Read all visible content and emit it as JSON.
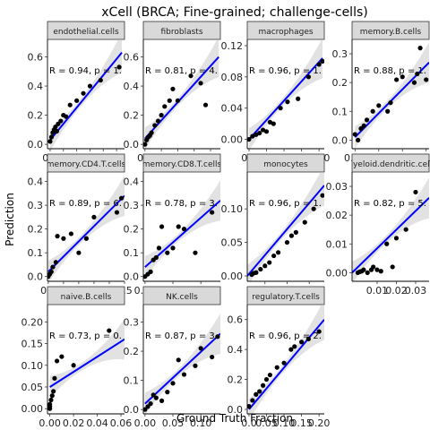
{
  "chart_data": {
    "type": "scatter",
    "title": "xCell (BRCA; Fine-grained; challenge-cells)",
    "xlabel": "Ground Truth Fraction",
    "ylabel": "Prediction",
    "colors": {
      "points": "#000000",
      "fit_line": "#0000ff",
      "band": "#bebebe",
      "strip_fill": "#d9d9d9",
      "strip_border": "#333333"
    },
    "panels": [
      {
        "name": "endothelial.cells",
        "annotation": "R = 0.94, p = 1.",
        "xlim": [
          -0.02,
          0.56
        ],
        "ylim": [
          -0.03,
          0.72
        ],
        "xticks": [
          0.0,
          0.1,
          0.2,
          0.3,
          0.4,
          0.5
        ],
        "xticklabels": [
          "0.0",
          "0.1",
          "0.2",
          "0.3",
          "0.4",
          "0.5"
        ],
        "yticks": [
          0.0,
          0.2,
          0.4,
          0.6
        ],
        "yticklabels": [
          "0.0",
          "0.2",
          "0.4",
          "0.6"
        ],
        "fit": [
          [
            0.0,
            0.03
          ],
          [
            0.54,
            0.63
          ]
        ],
        "x": [
          0.0,
          0.01,
          0.02,
          0.03,
          0.04,
          0.05,
          0.06,
          0.08,
          0.1,
          0.12,
          0.15,
          0.2,
          0.25,
          0.3,
          0.38,
          0.52
        ],
        "y": [
          0.02,
          0.05,
          0.08,
          0.1,
          0.12,
          0.09,
          0.14,
          0.16,
          0.2,
          0.19,
          0.27,
          0.3,
          0.35,
          0.4,
          0.44,
          0.53
        ]
      },
      {
        "name": "fibroblasts",
        "annotation": "R = 0.81, p = 4.",
        "xlim": [
          -0.01,
          0.46
        ],
        "ylim": [
          -0.03,
          0.72
        ],
        "xticks": [
          0.0,
          0.1,
          0.2,
          0.3,
          0.4
        ],
        "xticklabels": [
          "0.0",
          "0.1",
          "0.2",
          "0.3",
          "0.4"
        ],
        "yticks": [
          0.0,
          0.2,
          0.4,
          0.6
        ],
        "yticklabels": [
          "0.0",
          "0.2",
          "0.4",
          "0.6"
        ],
        "fit": [
          [
            0.0,
            0.04
          ],
          [
            0.45,
            0.6
          ]
        ],
        "x": [
          0.0,
          0.01,
          0.02,
          0.03,
          0.04,
          0.06,
          0.08,
          0.1,
          0.12,
          0.15,
          0.17,
          0.2,
          0.28,
          0.34,
          0.37
        ],
        "y": [
          0.0,
          0.03,
          0.05,
          0.06,
          0.08,
          0.13,
          0.16,
          0.2,
          0.26,
          0.3,
          0.38,
          0.3,
          0.47,
          0.42,
          0.27
        ]
      },
      {
        "name": "macrophages",
        "annotation": "R = 0.96, p = 1.",
        "xlim": [
          -0.005,
          0.215
        ],
        "ylim": [
          -0.012,
          0.128
        ],
        "xticks": [
          0.0,
          0.05,
          0.1,
          0.15,
          0.2
        ],
        "xticklabels": [
          "0.0",
          "0.05",
          "0.10",
          "0.15",
          "0.20"
        ],
        "yticks": [
          0.0,
          0.04,
          0.08,
          0.12
        ],
        "yticklabels": [
          "0.00",
          "0.04",
          "0.08",
          "0.12"
        ],
        "fit": [
          [
            0.0,
            0.0
          ],
          [
            0.21,
            0.104
          ]
        ],
        "x": [
          0.0,
          0.01,
          0.02,
          0.03,
          0.04,
          0.05,
          0.06,
          0.07,
          0.09,
          0.11,
          0.14,
          0.17,
          0.2,
          0.21
        ],
        "y": [
          0.0,
          0.004,
          0.006,
          0.008,
          0.012,
          0.01,
          0.022,
          0.02,
          0.04,
          0.048,
          0.052,
          0.08,
          0.096,
          0.1
        ]
      },
      {
        "name": "memory.B.cells",
        "annotation": "R = 0.88, p = 1.",
        "xlim": [
          -0.005,
          0.125
        ],
        "ylim": [
          -0.03,
          0.35
        ],
        "xticks": [
          0.0,
          0.04,
          0.08,
          0.12
        ],
        "xticklabels": [
          "0.00",
          "0.04",
          "0.08",
          "0.12"
        ],
        "yticks": [
          0.0,
          0.1,
          0.2,
          0.3
        ],
        "yticklabels": [
          "0.0",
          "0.1",
          "0.2",
          "0.3"
        ],
        "fit": [
          [
            0.0,
            0.01
          ],
          [
            0.125,
            0.27
          ]
        ],
        "x": [
          0.0,
          0.005,
          0.01,
          0.015,
          0.02,
          0.03,
          0.04,
          0.055,
          0.06,
          0.07,
          0.08,
          0.1,
          0.105,
          0.11,
          0.12
        ],
        "y": [
          0.02,
          0.0,
          0.04,
          0.05,
          0.07,
          0.1,
          0.12,
          0.1,
          0.13,
          0.21,
          0.22,
          0.2,
          0.23,
          0.32,
          0.21
        ]
      },
      {
        "name": "memory.CD4.T.cells",
        "annotation": "R = 0.89, p = 6.",
        "xlim": [
          -0.005,
          0.5
        ],
        "ylim": [
          -0.02,
          0.44
        ],
        "xticks": [
          0.0,
          0.1,
          0.2,
          0.3,
          0.4,
          0.5
        ],
        "xticklabels": [
          "0.0",
          "0.1",
          "0.2",
          "0.3",
          "0.4",
          "0.5"
        ],
        "yticks": [
          0.0,
          0.1,
          0.2,
          0.3,
          0.4
        ],
        "yticklabels": [
          "0.0",
          "0.1",
          "0.2",
          "0.3",
          "0.4"
        ],
        "fit": [
          [
            0.0,
            0.02
          ],
          [
            0.5,
            0.34
          ]
        ],
        "x": [
          0.0,
          0.01,
          0.02,
          0.03,
          0.05,
          0.06,
          0.1,
          0.15,
          0.2,
          0.25,
          0.3,
          0.45,
          0.48
        ],
        "y": [
          0.0,
          0.01,
          0.02,
          0.04,
          0.06,
          0.17,
          0.16,
          0.18,
          0.1,
          0.16,
          0.25,
          0.27,
          0.33
        ]
      },
      {
        "name": "memory.CD8.T.cells",
        "annotation": "R = 0.78, p = 3.",
        "xlim": [
          -0.003,
          0.135
        ],
        "ylim": [
          -0.02,
          0.44
        ],
        "xticks": [
          0.0,
          0.05,
          0.1
        ],
        "xticklabels": [
          "0.00",
          "0.05",
          "0.10"
        ],
        "yticks": [
          0.0,
          0.1,
          0.2,
          0.3,
          0.4
        ],
        "yticklabels": [
          "0.0",
          "0.1",
          "0.2",
          "0.3",
          "0.4"
        ],
        "fit": [
          [
            0.0,
            0.04
          ],
          [
            0.135,
            0.32
          ]
        ],
        "x": [
          0.0,
          0.005,
          0.01,
          0.015,
          0.02,
          0.025,
          0.03,
          0.04,
          0.05,
          0.06,
          0.07,
          0.09,
          0.12
        ],
        "y": [
          0.0,
          0.01,
          0.02,
          0.07,
          0.08,
          0.12,
          0.21,
          0.1,
          0.12,
          0.21,
          0.2,
          0.1,
          0.27
        ]
      },
      {
        "name": "monocytes",
        "annotation": "R = 0.96, p = 1.",
        "xlim": [
          0.005,
          0.092
        ],
        "ylim": [
          -0.008,
          0.155
        ],
        "xticks": [
          0.025,
          0.05,
          0.075
        ],
        "xticklabels": [
          "0.025",
          "0.050",
          "0.075"
        ],
        "yticks": [
          0.0,
          0.05,
          0.1
        ],
        "yticklabels": [
          "0.00",
          "0.05",
          "0.10"
        ],
        "fit": [
          [
            0.005,
            0.0
          ],
          [
            0.092,
            0.135
          ]
        ],
        "x": [
          0.01,
          0.012,
          0.015,
          0.02,
          0.025,
          0.03,
          0.035,
          0.04,
          0.05,
          0.055,
          0.06,
          0.07,
          0.08,
          0.09
        ],
        "y": [
          0.002,
          0.004,
          0.005,
          0.01,
          0.015,
          0.02,
          0.03,
          0.035,
          0.05,
          0.06,
          0.065,
          0.08,
          0.1,
          0.12
        ]
      },
      {
        "name": "myeloid.dendritic.cells",
        "annotation": "R = 0.82, p = 5.",
        "xlim": [
          -0.003,
          0.037
        ],
        "ylim": [
          -0.003,
          0.035
        ],
        "xticks": [
          0.01,
          0.02,
          0.03
        ],
        "xticklabels": [
          "0.01",
          "0.02",
          "0.03"
        ],
        "yticks": [
          0.0,
          0.01,
          0.02,
          0.03
        ],
        "yticklabels": [
          "0.00",
          "0.01",
          "0.02",
          "0.03"
        ],
        "fit": [
          [
            -0.003,
            0.0
          ],
          [
            0.037,
            0.026
          ]
        ],
        "x": [
          0.0,
          0.001,
          0.002,
          0.003,
          0.005,
          0.007,
          0.008,
          0.01,
          0.012,
          0.015,
          0.018,
          0.02,
          0.025,
          0.03
        ],
        "y": [
          0.0,
          0.0003,
          0.0005,
          0.001,
          0.0,
          0.001,
          0.002,
          0.001,
          0.0005,
          0.01,
          0.002,
          0.012,
          0.015,
          0.028
        ]
      },
      {
        "name": "naive.B.cells",
        "annotation": "R = 0.73, p = 0.",
        "xlim": [
          -0.002,
          0.063
        ],
        "ylim": [
          -0.012,
          0.24
        ],
        "xticks": [
          0.0,
          0.02,
          0.04,
          0.06
        ],
        "xticklabels": [
          "0.00",
          "0.02",
          "0.04",
          "0.06"
        ],
        "yticks": [
          0.0,
          0.05,
          0.1,
          0.15,
          0.2
        ],
        "yticklabels": [
          "0.00",
          "0.05",
          "0.10",
          "0.15",
          "0.20"
        ],
        "fit": [
          [
            0.0,
            0.05
          ],
          [
            0.063,
            0.16
          ]
        ],
        "x": [
          0.0,
          0.0,
          0.0,
          0.001,
          0.002,
          0.003,
          0.004,
          0.006,
          0.01,
          0.02,
          0.05
        ],
        "y": [
          0.0,
          0.005,
          0.01,
          0.02,
          0.03,
          0.04,
          0.07,
          0.11,
          0.12,
          0.1,
          0.18
        ]
      },
      {
        "name": "NK.cells",
        "annotation": "R = 0.87, p = 3.",
        "xlim": [
          -0.003,
          0.135
        ],
        "ylim": [
          -0.015,
          0.36
        ],
        "xticks": [
          0.0,
          0.05,
          0.1
        ],
        "xticklabels": [
          "0.00",
          "0.05",
          "0.10"
        ],
        "yticks": [
          0.0,
          0.1,
          0.2,
          0.3
        ],
        "yticklabels": [
          "0.0",
          "0.1",
          "0.2",
          "0.3"
        ],
        "fit": [
          [
            0.0,
            0.02
          ],
          [
            0.135,
            0.26
          ]
        ],
        "x": [
          0.0,
          0.005,
          0.01,
          0.015,
          0.02,
          0.03,
          0.04,
          0.05,
          0.06,
          0.07,
          0.09,
          0.1,
          0.12,
          0.13
        ],
        "y": [
          0.0,
          0.01,
          0.02,
          0.05,
          0.04,
          0.03,
          0.06,
          0.09,
          0.17,
          0.12,
          0.15,
          0.21,
          0.18,
          0.25
        ]
      },
      {
        "name": "regulatory.T.cells",
        "annotation": "R = 0.96, p = 2.",
        "xlim": [
          -0.005,
          0.215
        ],
        "ylim": [
          -0.03,
          0.7
        ],
        "xticks": [
          0.0,
          0.05,
          0.1,
          0.15,
          0.2
        ],
        "xticklabels": [
          "0.0",
          "0.05",
          "0.10",
          "0.15",
          "0.20"
        ],
        "yticks": [
          0.0,
          0.2,
          0.4,
          0.6
        ],
        "yticklabels": [
          "0.0",
          "0.2",
          "0.4",
          "0.6"
        ],
        "fit": [
          [
            0.0,
            0.0
          ],
          [
            0.215,
            0.6
          ]
        ],
        "x": [
          0.0,
          0.01,
          0.02,
          0.03,
          0.04,
          0.05,
          0.06,
          0.08,
          0.1,
          0.12,
          0.13,
          0.15,
          0.17,
          0.2
        ],
        "y": [
          0.02,
          0.06,
          0.1,
          0.12,
          0.16,
          0.2,
          0.23,
          0.28,
          0.31,
          0.4,
          0.42,
          0.45,
          0.47,
          0.52
        ]
      }
    ]
  }
}
